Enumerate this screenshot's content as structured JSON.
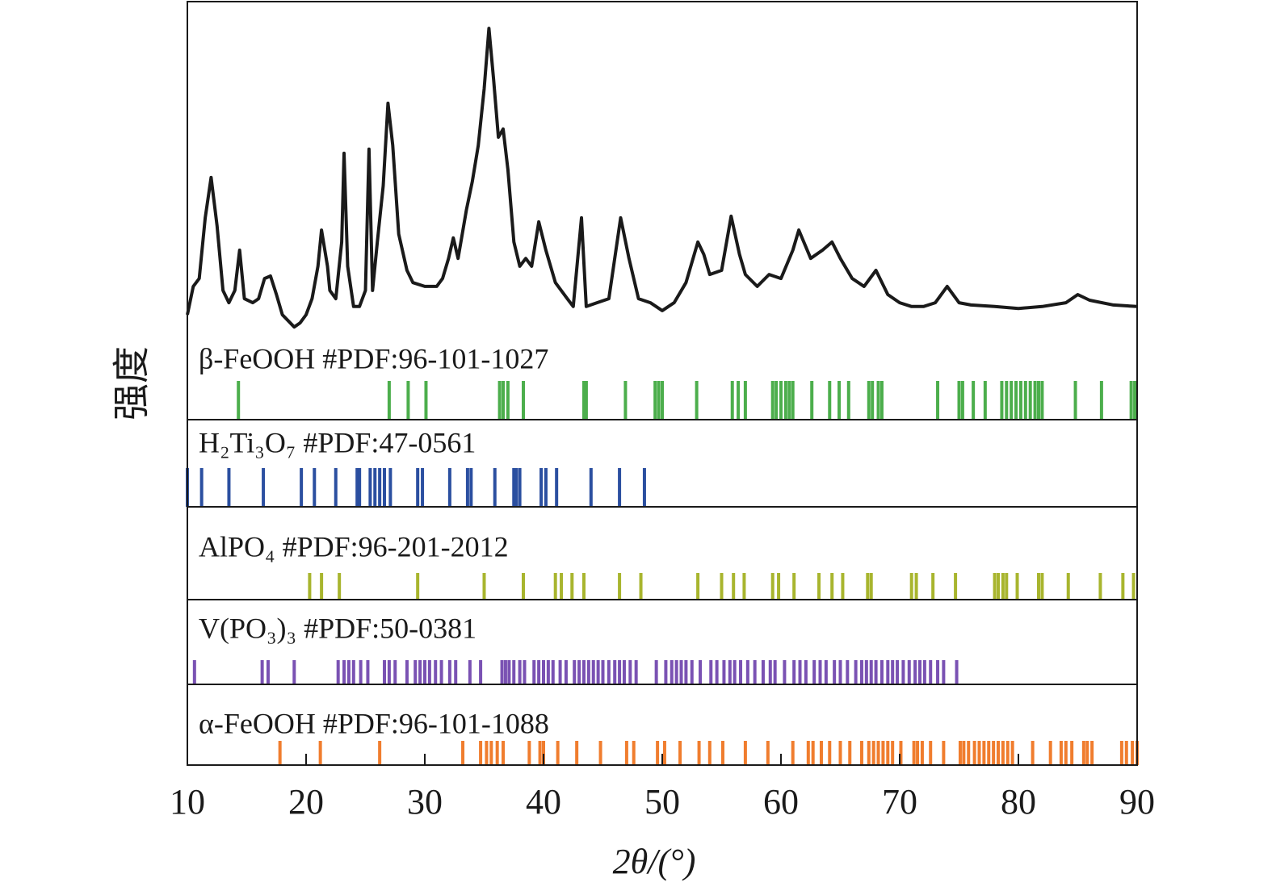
{
  "chart_data": {
    "type": "line",
    "xlabel": "2θ/(°)",
    "ylabel": "强度",
    "xlim": [
      10,
      90
    ],
    "xticks": [
      10,
      20,
      30,
      40,
      50,
      60,
      70,
      80,
      90
    ],
    "ylim": [
      0,
      100
    ],
    "color": "#1a1a1a",
    "x": [
      10,
      10.5,
      11,
      11.5,
      12,
      12.5,
      13,
      13.5,
      14,
      14.4,
      14.8,
      15.5,
      16,
      16.5,
      17,
      17.5,
      18,
      19,
      19.5,
      20,
      20.5,
      21,
      21.3,
      21.8,
      22,
      22.5,
      23,
      23.2,
      23.5,
      24,
      24.5,
      25,
      25.3,
      25.6,
      26,
      26.5,
      26.9,
      27.3,
      27.8,
      28.5,
      29,
      30,
      31,
      31.5,
      32,
      32.4,
      32.8,
      33.5,
      34,
      34.5,
      35,
      35.4,
      35.8,
      36.2,
      36.6,
      37,
      37.5,
      38,
      38.5,
      39,
      39.6,
      40.2,
      41,
      42,
      42.5,
      43.2,
      43.6,
      44.5,
      45.5,
      46.5,
      47.2,
      48,
      49,
      50,
      51,
      52,
      53,
      53.5,
      54,
      55,
      55.8,
      56.5,
      57,
      58,
      59,
      60,
      61,
      61.5,
      62.5,
      63.5,
      64.3,
      65,
      66,
      67,
      68,
      69,
      70,
      71,
      72,
      73,
      74,
      75,
      76,
      78,
      80,
      82,
      84,
      85,
      86,
      88,
      90
    ],
    "values": [
      7.7,
      16.7,
      19.2,
      38.5,
      51.3,
      35.9,
      15.4,
      11.5,
      15.4,
      28.2,
      12.8,
      11.5,
      12.8,
      19.2,
      20,
      14.1,
      7.7,
      3.8,
      5.1,
      7.7,
      12.8,
      23.1,
      34.6,
      23.1,
      15.4,
      12.8,
      30.8,
      59,
      23.1,
      10.3,
      10.3,
      15.4,
      60.3,
      15.4,
      30.8,
      48.7,
      74.9,
      61.5,
      33.3,
      21.8,
      17.9,
      16.7,
      16.7,
      19.2,
      25.6,
      32.1,
      25.6,
      41,
      50,
      61.5,
      79.5,
      98.7,
      82.1,
      64.1,
      66.7,
      53.8,
      30.8,
      23.1,
      25.6,
      23.1,
      37.2,
      28.2,
      17.9,
      12.8,
      10.3,
      38.5,
      10.3,
      11.5,
      12.8,
      38.5,
      25.6,
      12.8,
      11.5,
      9,
      11.5,
      17.9,
      30.8,
      26.9,
      20.5,
      21.8,
      39,
      26.9,
      20.5,
      16.7,
      20.5,
      19.2,
      28.2,
      34.6,
      25.6,
      28.2,
      30.8,
      25.6,
      19.2,
      16.7,
      21.8,
      14.1,
      11.5,
      10.3,
      10.3,
      11.5,
      16.7,
      11.5,
      10.8,
      10.3,
      9.7,
      10.3,
      11.5,
      14.1,
      12.3,
      10.8,
      10.3
    ],
    "reference_patterns": [
      {
        "name": "β-FeOOH #PDF:96-101-1027",
        "color": "#4cae4c",
        "positions": [
          14.3,
          27.0,
          28.6,
          30.1,
          36.3,
          36.6,
          37.0,
          38.3,
          43.4,
          43.6,
          46.9,
          49.4,
          49.7,
          50.0,
          52.9,
          55.9,
          56.4,
          57.0,
          59.3,
          59.6,
          60.0,
          60.4,
          60.7,
          61.0,
          62.6,
          64.1,
          64.9,
          65.7,
          67.4,
          67.7,
          68.2,
          68.5,
          73.2,
          75.0,
          75.3,
          76.2,
          77.2,
          78.6,
          79.0,
          79.4,
          79.8,
          80.2,
          80.6,
          81.0,
          81.4,
          81.7,
          82.0,
          84.8,
          87.0,
          89.5,
          89.8
        ]
      },
      {
        "name": "H₂Ti₃O₇ #PDF:47-0561",
        "color": "#2b4fa0",
        "positions": [
          10.0,
          11.2,
          13.5,
          16.4,
          19.6,
          20.7,
          22.5,
          24.3,
          24.5,
          25.4,
          25.8,
          26.2,
          26.6,
          27.1,
          29.4,
          29.8,
          32.1,
          33.6,
          33.9,
          35.9,
          37.5,
          37.7,
          38.0,
          39.8,
          40.2,
          41.1,
          44.0,
          46.4,
          48.5
        ]
      },
      {
        "name": "AlPO₄ #PDF:96-201-2012",
        "color": "#a8b52e",
        "positions": [
          20.3,
          21.3,
          22.8,
          29.4,
          35.0,
          38.3,
          41.0,
          41.5,
          42.4,
          43.4,
          46.4,
          48.2,
          53.0,
          55.0,
          56.0,
          56.9,
          59.3,
          59.8,
          61.1,
          63.2,
          64.3,
          65.2,
          67.3,
          67.6,
          71.0,
          71.4,
          72.8,
          74.7,
          78.0,
          78.3,
          78.7,
          79.0,
          79.9,
          81.7,
          82.0,
          84.2,
          86.9,
          88.8,
          89.7
        ]
      },
      {
        "name": "V(PO₃)₃ #PDF:50-0381",
        "color": "#7a52b3",
        "positions": [
          10.6,
          16.3,
          16.8,
          19.0,
          22.7,
          23.2,
          23.6,
          24.0,
          24.6,
          25.2,
          26.6,
          27.0,
          27.5,
          28.5,
          29.2,
          29.6,
          30.0,
          30.4,
          30.9,
          31.4,
          32.1,
          32.6,
          33.8,
          34.7,
          36.5,
          36.8,
          37.1,
          37.5,
          38.0,
          38.4,
          39.2,
          39.6,
          40.0,
          40.4,
          40.8,
          41.4,
          41.9,
          42.6,
          43.0,
          43.4,
          43.8,
          44.2,
          44.6,
          45.0,
          45.5,
          46.0,
          46.4,
          46.8,
          47.3,
          47.8,
          49.5,
          50.3,
          50.8,
          51.2,
          51.6,
          52.0,
          52.5,
          53.2,
          54.1,
          54.6,
          55.2,
          55.7,
          56.1,
          56.6,
          57.2,
          57.8,
          58.5,
          59.1,
          59.5,
          60.3,
          61.1,
          61.6,
          62.1,
          62.8,
          63.3,
          63.8,
          64.5,
          65.0,
          65.6,
          66.3,
          66.8,
          67.2,
          67.6,
          68.0,
          68.5,
          69.0,
          69.4,
          69.8,
          70.3,
          70.8,
          71.3,
          71.7,
          72.1,
          72.6,
          73.2,
          73.7,
          74.8
        ]
      },
      {
        "name": "α-FeOOH #PDF:96-101-1088",
        "color": "#f07d2e",
        "positions": [
          17.8,
          21.2,
          26.2,
          33.2,
          34.7,
          35.2,
          35.6,
          36.1,
          36.6,
          38.8,
          39.7,
          40.0,
          41.2,
          42.8,
          44.8,
          47.0,
          47.6,
          49.6,
          50.2,
          51.5,
          53.1,
          54.0,
          55.1,
          57.0,
          58.9,
          61.0,
          62.3,
          62.7,
          63.4,
          64.1,
          65.0,
          65.8,
          66.8,
          67.4,
          67.8,
          68.2,
          68.6,
          69.0,
          69.4,
          70.1,
          71.2,
          71.5,
          71.9,
          72.6,
          73.7,
          75.1,
          75.4,
          75.8,
          76.3,
          76.7,
          77.1,
          77.5,
          77.9,
          78.3,
          78.7,
          79.1,
          79.5,
          81.2,
          82.7,
          83.6,
          84.0,
          84.5,
          85.5,
          85.8,
          86.2,
          88.7,
          89.1,
          89.6,
          90.0
        ]
      }
    ]
  }
}
